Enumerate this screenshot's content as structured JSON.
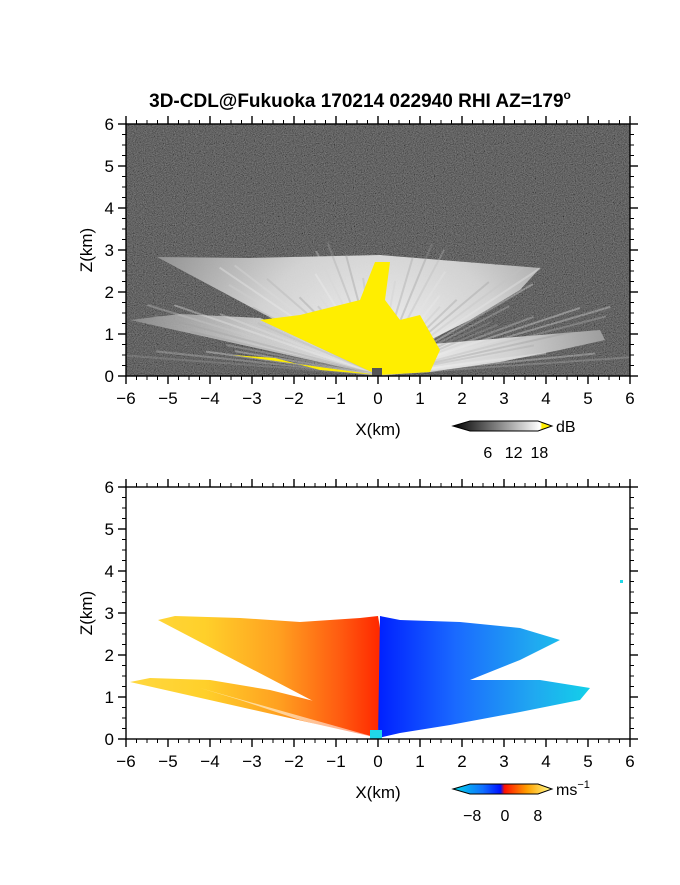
{
  "title_main": "3D-CDL@Fukuoka 170214 022940 RHI AZ=179",
  "title_sup": "o",
  "chart_data": [
    {
      "type": "heatmap",
      "panel": "top",
      "quantity": "signal intensity",
      "xlabel": "X(km)",
      "ylabel": "Z(km)",
      "xlim": [
        -6,
        6
      ],
      "ylim": [
        0,
        6
      ],
      "xticks": [
        -6,
        -5,
        -4,
        -3,
        -2,
        -1,
        0,
        1,
        2,
        3,
        4,
        5,
        6
      ],
      "yticks": [
        0,
        1,
        2,
        3,
        4,
        5,
        6
      ],
      "colorbar": {
        "unit": "dB",
        "ticks": [
          6,
          12,
          18
        ],
        "range": [
          0,
          20
        ],
        "colors": [
          "#000000",
          "#ffffff",
          "#ffee00"
        ]
      },
      "echo_top_km": 2.85,
      "lower_layer_km": [
        0.8,
        1.4
      ]
    },
    {
      "type": "heatmap",
      "panel": "bottom",
      "quantity": "Doppler velocity",
      "xlabel": "X(km)",
      "ylabel": "Z(km)",
      "xlim": [
        -6,
        6
      ],
      "ylim": [
        0,
        6
      ],
      "xticks": [
        -6,
        -5,
        -4,
        -3,
        -2,
        -1,
        0,
        1,
        2,
        3,
        4,
        5,
        6
      ],
      "yticks": [
        0,
        1,
        2,
        3,
        4,
        5,
        6
      ],
      "colorbar": {
        "unit": "ms",
        "unit_sup": "−1",
        "ticks": [
          -8,
          0,
          8
        ],
        "range": [
          -10,
          10
        ],
        "colors": [
          "#00d8e8",
          "#0040ff",
          "#ff2000",
          "#ffd000",
          "#ffff80"
        ]
      },
      "upper_plume_top_km": 2.85,
      "lower_plume_km": [
        0.9,
        1.4
      ]
    }
  ]
}
